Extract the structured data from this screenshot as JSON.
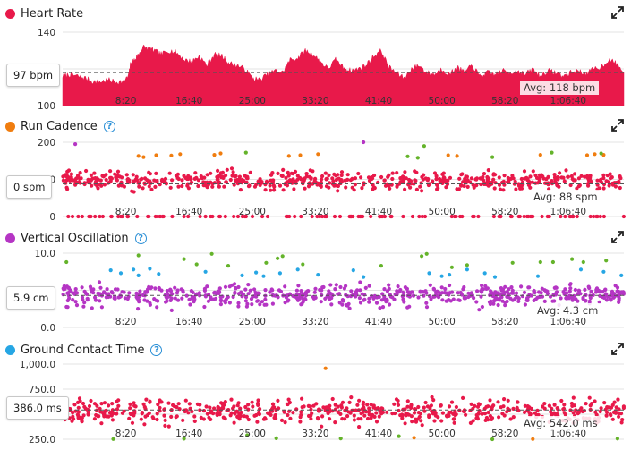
{
  "colors": {
    "heart_rate": "#e8194a",
    "cadence_red": "#e8194a",
    "cadence_orange": "#f07d0f",
    "cadence_green": "#64b32a",
    "vo_purple": "#b535c4",
    "vo_blue": "#26a6e4",
    "vo_green": "#64b32a",
    "gct_red": "#e8194a",
    "gct_green": "#64b32a",
    "gct_orange": "#f07d0f",
    "help": "#2a8fd6"
  },
  "icons": {
    "expand": "expand-arrows-icon",
    "help": "question-circle-icon"
  },
  "x_tick_labels": [
    "8:20",
    "16:40",
    "25:00",
    "33:20",
    "41:40",
    "50:00",
    "58:20",
    "1:06:40"
  ],
  "charts": [
    {
      "id": "heart-rate",
      "title": "Heart Rate",
      "has_help": false,
      "current_value": "97 bpm",
      "avg_label": "Avg: 118 bpm",
      "y_tick_labels": [
        "140",
        "120",
        "100"
      ],
      "chart_data": {
        "type": "area",
        "title": "Heart Rate",
        "unit": "bpm",
        "x_unit": "seconds",
        "xlim": [
          0,
          4440
        ],
        "ylim": [
          100,
          140
        ],
        "y_ticks": [
          140,
          120,
          100
        ],
        "average": 118,
        "series": [
          {
            "name": "Heart Rate",
            "points": [
              [
                0,
                116
              ],
              [
                60,
                117
              ],
              [
                120,
                116
              ],
              [
                180,
                115
              ],
              [
                240,
                113
              ],
              [
                300,
                113
              ],
              [
                360,
                114
              ],
              [
                420,
                113
              ],
              [
                480,
                113
              ],
              [
                520,
                116
              ],
              [
                540,
                124
              ],
              [
                570,
                125
              ],
              [
                600,
                128
              ],
              [
                640,
                132
              ],
              [
                690,
                131
              ],
              [
                720,
                130
              ],
              [
                780,
                128
              ],
              [
                840,
                130
              ],
              [
                900,
                129
              ],
              [
                960,
                125
              ],
              [
                1020,
                124
              ],
              [
                1080,
                127
              ],
              [
                1140,
                122
              ],
              [
                1200,
                128
              ],
              [
                1260,
                127
              ],
              [
                1320,
                123
              ],
              [
                1380,
                122
              ],
              [
                1440,
                120
              ],
              [
                1500,
                115
              ],
              [
                1560,
                114
              ],
              [
                1620,
                117
              ],
              [
                1680,
                119
              ],
              [
                1740,
                118
              ],
              [
                1800,
                125
              ],
              [
                1860,
                126
              ],
              [
                1920,
                130
              ],
              [
                1980,
                128
              ],
              [
                2040,
                124
              ],
              [
                2100,
                120
              ],
              [
                2160,
                125
              ],
              [
                2220,
                121
              ],
              [
                2280,
                119
              ],
              [
                2340,
                120
              ],
              [
                2400,
                122
              ],
              [
                2460,
                127
              ],
              [
                2520,
                130
              ],
              [
                2580,
                121
              ],
              [
                2640,
                118
              ],
              [
                2700,
                115
              ],
              [
                2760,
                120
              ],
              [
                2820,
                122
              ],
              [
                2880,
                118
              ],
              [
                2940,
                117
              ],
              [
                3000,
                120
              ],
              [
                3060,
                117
              ],
              [
                3120,
                121
              ],
              [
                3180,
                118
              ],
              [
                3240,
                122
              ],
              [
                3300,
                116
              ],
              [
                3360,
                118
              ],
              [
                3420,
                117
              ],
              [
                3480,
                119
              ],
              [
                3540,
                118
              ],
              [
                3600,
                119
              ],
              [
                3660,
                117
              ],
              [
                3720,
                120
              ],
              [
                3780,
                116
              ],
              [
                3840,
                119
              ],
              [
                3900,
                118
              ],
              [
                3960,
                116
              ],
              [
                4020,
                118
              ],
              [
                4080,
                119
              ],
              [
                4140,
                117
              ],
              [
                4200,
                120
              ],
              [
                4260,
                121
              ],
              [
                4320,
                125
              ],
              [
                4380,
                123
              ],
              [
                4440,
                118
              ]
            ]
          }
        ]
      }
    },
    {
      "id": "run-cadence",
      "title": "Run Cadence",
      "has_help": true,
      "current_value": "0 spm",
      "avg_label": "Avg: 88 spm",
      "y_tick_labels": [
        "200",
        "100",
        "0"
      ],
      "chart_data": {
        "type": "scatter",
        "title": "Run Cadence",
        "unit": "spm",
        "x_unit": "seconds",
        "xlim": [
          0,
          4440
        ],
        "ylim": [
          0,
          200
        ],
        "y_ticks": [
          200,
          100,
          0
        ],
        "average": 88,
        "series": [
          {
            "name": "",
            "color_key": "cadence_red",
            "generator": {
              "count": 620,
              "x_min": 0,
              "x_max": 4440,
              "mean": 96,
              "spread": 22
            }
          },
          {
            "name": "",
            "color_key": "cadence_red",
            "generator": {
              "count": 120,
              "x_min": 0,
              "x_max": 4440,
              "mean": 0,
              "spread": 0
            }
          },
          {
            "name": "",
            "color_key": "cadence_orange",
            "points": [
              [
                600,
                163
              ],
              [
                640,
                160
              ],
              [
                740,
                165
              ],
              [
                860,
                164
              ],
              [
                930,
                168
              ],
              [
                1200,
                166
              ],
              [
                1250,
                170
              ],
              [
                1790,
                163
              ],
              [
                1880,
                165
              ],
              [
                2020,
                168
              ],
              [
                3050,
                165
              ],
              [
                3120,
                163
              ],
              [
                3780,
                166
              ],
              [
                4150,
                165
              ],
              [
                4210,
                168
              ],
              [
                4280,
                166
              ]
            ]
          },
          {
            "name": "",
            "color_key": "cadence_green",
            "points": [
              [
                1450,
                172
              ],
              [
                2730,
                162
              ],
              [
                2810,
                158
              ],
              [
                2860,
                190
              ],
              [
                3400,
                160
              ],
              [
                3870,
                172
              ],
              [
                4260,
                170
              ]
            ]
          },
          {
            "name": "",
            "color_key": "vo_purple",
            "points": [
              [
                100,
                195
              ],
              [
                2380,
                200
              ]
            ]
          }
        ]
      }
    },
    {
      "id": "vertical-oscillation",
      "title": "Vertical Oscillation",
      "has_help": true,
      "current_value": "5.9 cm",
      "avg_label": "Avg: 4.3 cm",
      "y_tick_labels": [
        "10.0",
        "5.0",
        "0.0"
      ],
      "chart_data": {
        "type": "scatter",
        "title": "Vertical Oscillation",
        "unit": "cm",
        "x_unit": "seconds",
        "xlim": [
          0,
          4440
        ],
        "ylim": [
          0,
          10
        ],
        "y_ticks": [
          10.0,
          5.0,
          0.0
        ],
        "average": 4.3,
        "series": [
          {
            "name": "",
            "color_key": "vo_purple",
            "generator": {
              "count": 640,
              "x_min": 0,
              "x_max": 4440,
              "mean": 4.3,
              "spread": 1.3
            }
          },
          {
            "name": "",
            "color_key": "vo_blue",
            "points": [
              [
                380,
                7.7
              ],
              [
                460,
                7.3
              ],
              [
                560,
                7.8
              ],
              [
                600,
                7.0
              ],
              [
                690,
                7.9
              ],
              [
                760,
                7.2
              ],
              [
                1130,
                7.5
              ],
              [
                1420,
                7.0
              ],
              [
                1530,
                7.4
              ],
              [
                1590,
                6.9
              ],
              [
                1720,
                7.3
              ],
              [
                1860,
                7.8
              ],
              [
                2020,
                7.1
              ],
              [
                2300,
                7.7
              ],
              [
                2380,
                6.8
              ],
              [
                2900,
                7.3
              ],
              [
                3000,
                6.9
              ],
              [
                3060,
                7.1
              ],
              [
                3200,
                7.8
              ],
              [
                3340,
                7.3
              ],
              [
                3420,
                6.8
              ],
              [
                3760,
                6.9
              ],
              [
                4100,
                7.8
              ],
              [
                4280,
                7.5
              ],
              [
                4420,
                7.0
              ]
            ]
          },
          {
            "name": "",
            "color_key": "vo_green",
            "points": [
              [
                30,
                8.8
              ],
              [
                600,
                9.7
              ],
              [
                960,
                9.2
              ],
              [
                1060,
                8.5
              ],
              [
                1180,
                9.9
              ],
              [
                1310,
                8.3
              ],
              [
                1610,
                8.7
              ],
              [
                1700,
                9.3
              ],
              [
                1740,
                9.6
              ],
              [
                1900,
                8.5
              ],
              [
                2520,
                8.3
              ],
              [
                2840,
                9.6
              ],
              [
                2880,
                9.9
              ],
              [
                3080,
                8.1
              ],
              [
                3200,
                8.4
              ],
              [
                3560,
                8.7
              ],
              [
                3780,
                8.8
              ],
              [
                3880,
                8.8
              ],
              [
                4030,
                9.2
              ],
              [
                4120,
                8.8
              ],
              [
                4300,
                9.0
              ]
            ]
          }
        ]
      }
    },
    {
      "id": "ground-contact-time",
      "title": "Ground Contact Time",
      "has_help": true,
      "current_value": "386.0 ms",
      "avg_label": "Avg: 542.0 ms",
      "y_tick_labels": [
        "1,000.0",
        "750.0",
        "500.0",
        "250.0"
      ],
      "chart_data": {
        "type": "scatter",
        "title": "Ground Contact Time",
        "unit": "ms",
        "x_unit": "seconds",
        "xlim": [
          0,
          4440
        ],
        "ylim": [
          250,
          1000
        ],
        "y_ticks": [
          1000,
          750,
          500,
          250
        ],
        "average": 542.0,
        "series": [
          {
            "name": "",
            "color_key": "gct_red",
            "generator": {
              "count": 600,
              "x_min": 0,
              "x_max": 4440,
              "mean": 530,
              "spread": 110
            }
          },
          {
            "name": "",
            "color_key": "gct_green",
            "points": [
              [
                400,
                252
              ],
              [
                960,
                255
              ],
              [
                1460,
                290
              ],
              [
                1690,
                260
              ],
              [
                2200,
                258
              ],
              [
                2660,
                280
              ],
              [
                3400,
                250
              ],
              [
                4390,
                256
              ]
            ]
          },
          {
            "name": "",
            "color_key": "gct_orange",
            "points": [
              [
                2080,
                958
              ],
              [
                2780,
                265
              ],
              [
                3720,
                252
              ]
            ]
          }
        ]
      }
    }
  ]
}
